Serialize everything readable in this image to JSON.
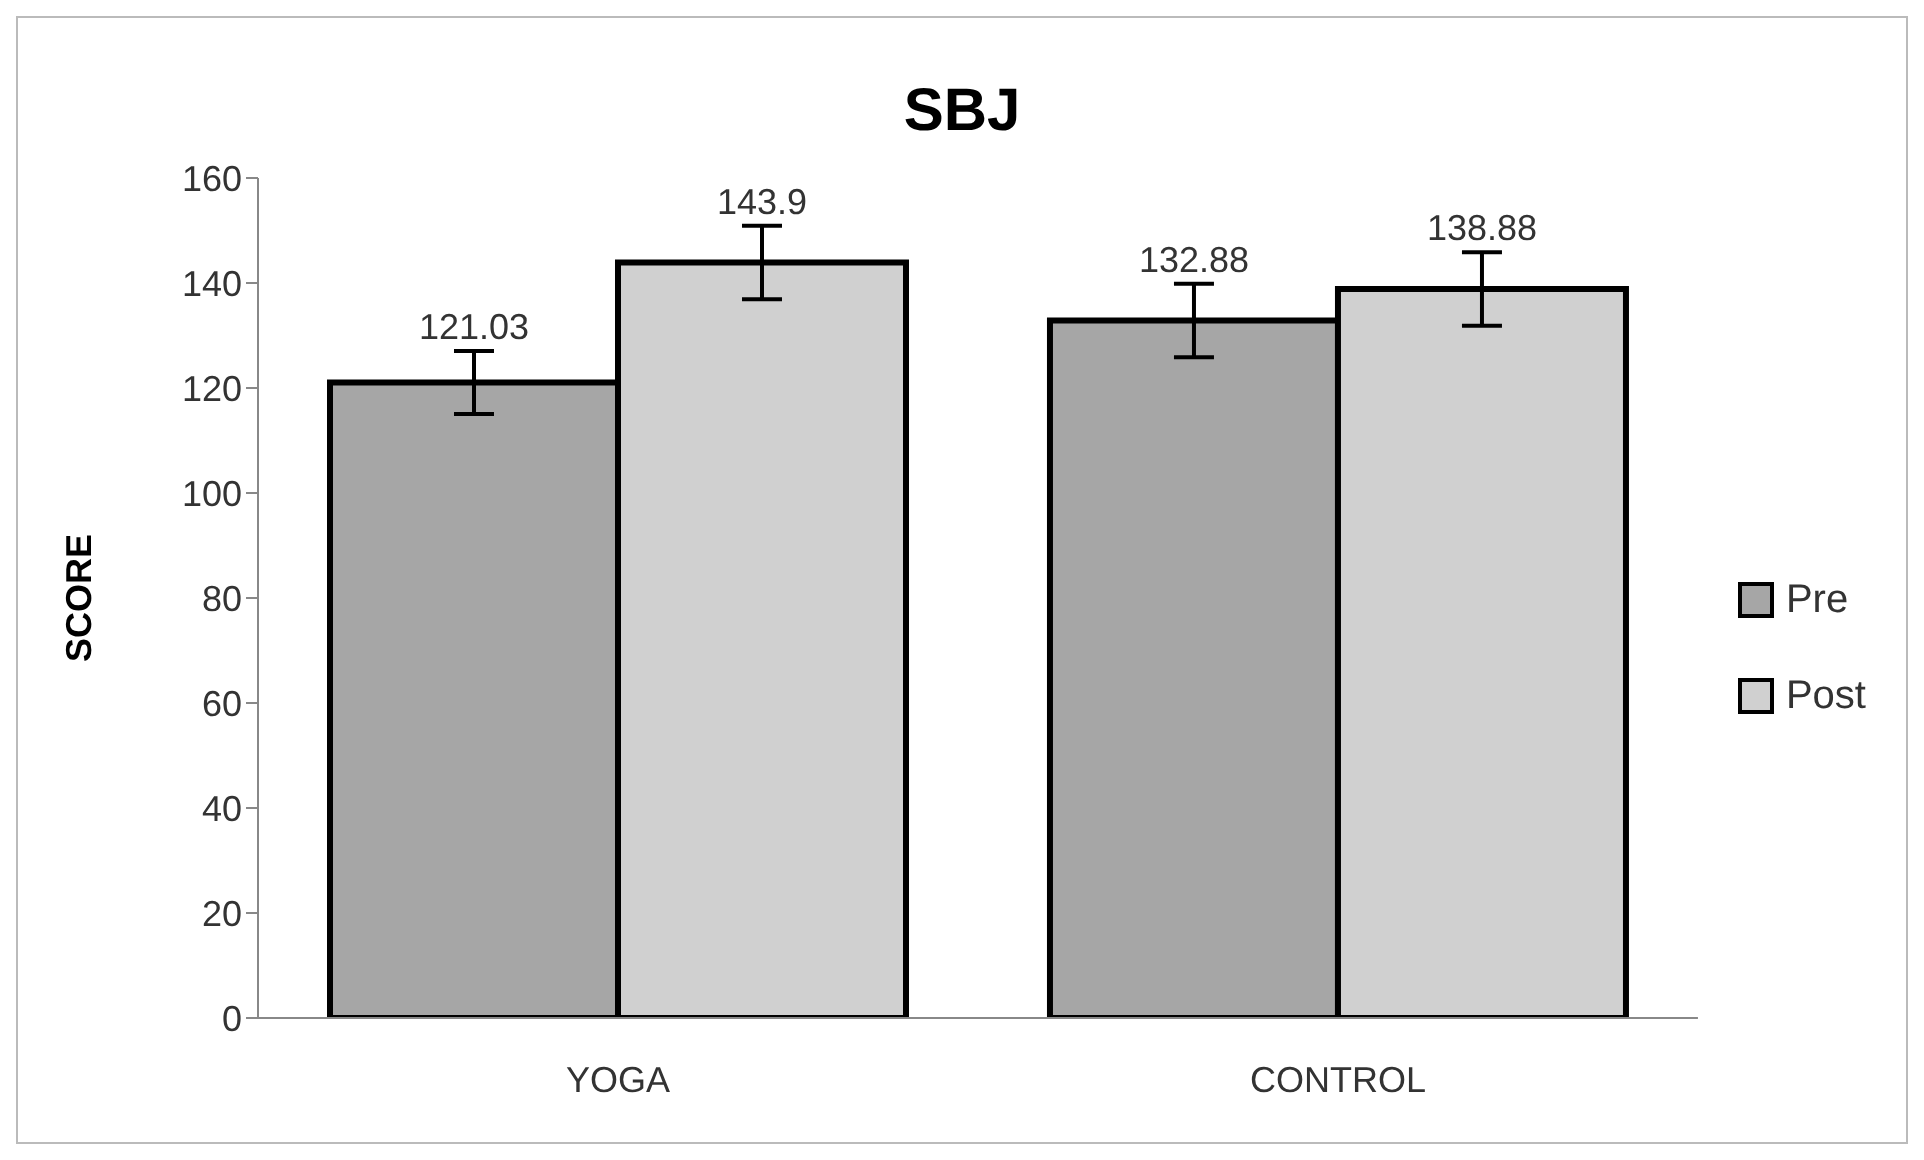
{
  "chart_data": {
    "type": "bar",
    "title": "SBJ",
    "ylabel": "SCORE",
    "categories": [
      "YOGA",
      "CONTROL"
    ],
    "series": [
      {
        "name": "Pre",
        "color": "#a6a6a6",
        "values": [
          121.03,
          132.88
        ],
        "errors": [
          6,
          7
        ]
      },
      {
        "name": "Post",
        "color": "#d0d0d0",
        "values": [
          143.9,
          138.88
        ],
        "errors": [
          7,
          7
        ]
      }
    ],
    "ylim": [
      0,
      160
    ],
    "yticks": [
      0,
      20,
      40,
      60,
      80,
      100,
      120,
      140,
      160
    ],
    "data_labels": true,
    "legend": "right"
  }
}
